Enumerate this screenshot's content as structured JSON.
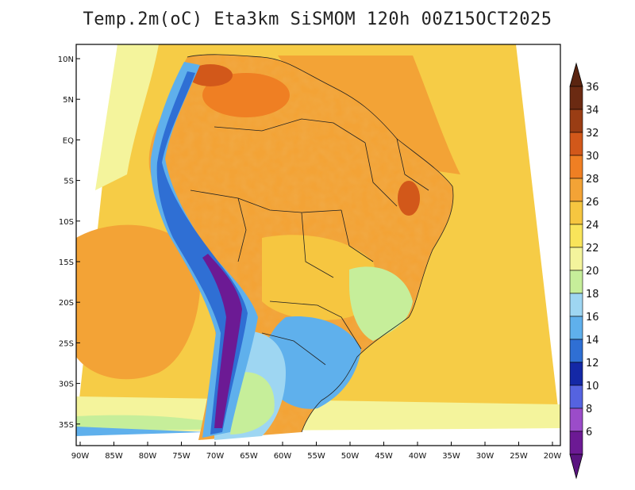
{
  "title": "Temp.2m(oC) Eta3km SiSMOM 120h 00Z15OCT2025",
  "latitude_labels": [
    "10N",
    "5N",
    "EQ",
    "5S",
    "10S",
    "15S",
    "20S",
    "25S",
    "30S",
    "35S"
  ],
  "longitude_labels": [
    "90W",
    "85W",
    "80W",
    "75W",
    "70W",
    "65W",
    "60W",
    "55W",
    "50W",
    "45W",
    "40W",
    "35W",
    "30W",
    "25W",
    "20W"
  ],
  "colorbar": {
    "labels": [
      "36",
      "34",
      "32",
      "30",
      "28",
      "26",
      "24",
      "22",
      "20",
      "18",
      "16",
      "14",
      "12",
      "10",
      "8",
      "6"
    ],
    "colors": [
      "#6b2a12",
      "#9a3d14",
      "#d2581a",
      "#ef7f23",
      "#f3a336",
      "#f6c640",
      "#f9e45a",
      "#f4f49c",
      "#c6ee9a",
      "#9ed6f2",
      "#5fb0ec",
      "#2f6fd4",
      "#1428a6",
      "#5563e0",
      "#9b4cc9",
      "#6c1a94"
    ],
    "top_color": "#5a2410",
    "bottom_color": "#5a1480"
  }
}
